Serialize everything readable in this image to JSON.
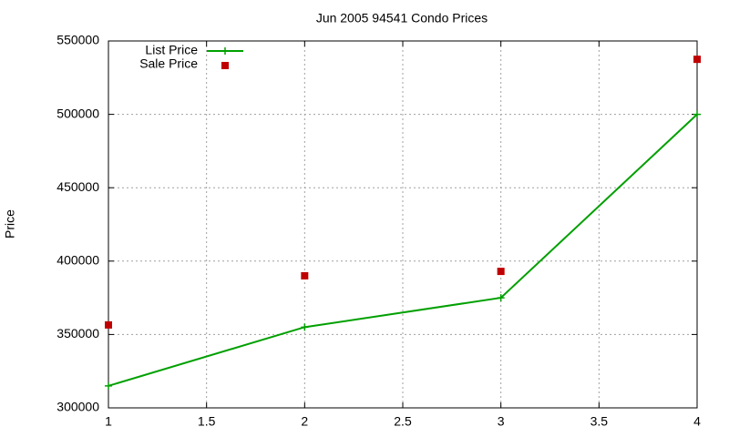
{
  "chart_data": {
    "type": "line",
    "title": "Jun 2005 94541 Condo Prices",
    "y_label": "Price",
    "x": [
      1,
      2,
      3,
      4
    ],
    "series": [
      {
        "name": "List Price",
        "color": "#00a000",
        "style": "linespoints",
        "values": [
          315000,
          355000,
          375000,
          500000
        ]
      },
      {
        "name": "Sale Price",
        "color": "#c00000",
        "style": "points",
        "values": [
          356500,
          390000,
          393000,
          537500
        ]
      }
    ],
    "xlim": [
      1,
      4
    ],
    "xticks": [
      1,
      1.5,
      2,
      2.5,
      3,
      3.5,
      4
    ],
    "ylim": [
      300000,
      550000
    ],
    "yticks": [
      300000,
      350000,
      400000,
      450000,
      500000,
      550000
    ],
    "grid": true,
    "legend": "top left"
  }
}
